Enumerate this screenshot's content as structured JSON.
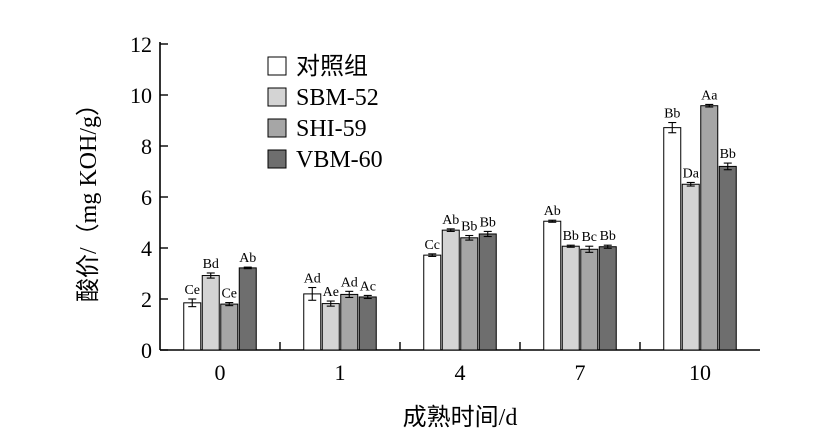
{
  "chart_data": {
    "type": "bar",
    "xlabel": "成熟时间/d",
    "ylabel": "酸价/（mg KOH/g）",
    "categories": [
      "0",
      "1",
      "4",
      "7",
      "10"
    ],
    "ylim": [
      0,
      12
    ],
    "yticks": [
      0,
      2,
      4,
      6,
      8,
      10,
      12
    ],
    "grid": false,
    "legend_position": "top-left",
    "series": [
      {
        "name": "对照组",
        "color": "#ffffff",
        "values": [
          1.85,
          2.2,
          3.72,
          5.05,
          8.72
        ],
        "errors": [
          0.15,
          0.25,
          0.05,
          0.04,
          0.2
        ],
        "labels": [
          "Ce",
          "Ad",
          "Cc",
          "Ab",
          "Bb"
        ]
      },
      {
        "name": "SBM-52",
        "color": "#d4d4d4",
        "values": [
          2.92,
          1.82,
          4.7,
          4.07,
          6.5
        ],
        "errors": [
          0.1,
          0.1,
          0.05,
          0.04,
          0.07
        ],
        "labels": [
          "Bd",
          "Ae",
          "Ab",
          "Bb",
          "Da"
        ]
      },
      {
        "name": "SHI-59",
        "color": "#a6a6a6",
        "values": [
          1.8,
          2.18,
          4.4,
          3.95,
          9.58
        ],
        "errors": [
          0.06,
          0.12,
          0.09,
          0.12,
          0.05
        ],
        "labels": [
          "Ce",
          "Ad",
          "Bb",
          "Bc",
          "Aa"
        ]
      },
      {
        "name": "VBM-60",
        "color": "#6e6e6e",
        "values": [
          3.22,
          2.08,
          4.55,
          4.05,
          7.2
        ],
        "errors": [
          0.03,
          0.06,
          0.1,
          0.06,
          0.13
        ],
        "labels": [
          "Ab",
          "Ac",
          "Bb",
          "Bb",
          "Bb"
        ]
      }
    ]
  }
}
